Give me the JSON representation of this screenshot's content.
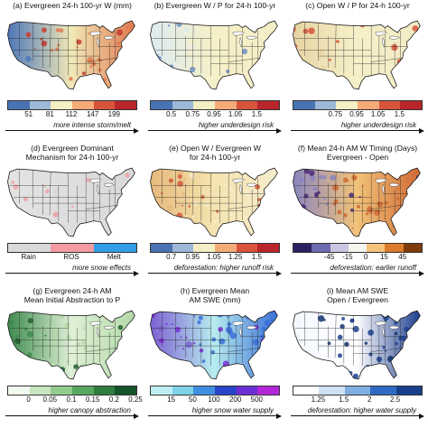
{
  "figure": {
    "panels": [
      {
        "title_lines": [
          "(a) Evergreen 24-h 100-yr W (mm)"
        ],
        "map_colors": {
          "west": "#4d77b8",
          "center": "#f2e8b7",
          "east": "#e07a4f",
          "accent": "#c63b2f"
        },
        "legend_type": "continuous",
        "legend_colors": [
          "#4a73b4",
          "#9cb9d7",
          "#f3eec4",
          "#f5ab78",
          "#d8533b",
          "#b8262b"
        ],
        "ticks": [
          "51",
          "81",
          "112",
          "147",
          "199"
        ],
        "arrow_text": "more intense storm/melt"
      },
      {
        "title_lines": [
          "(b) Evergreen W / P for 24-h 100-yr"
        ],
        "map_colors": {
          "west": "#dcebf0",
          "center": "#f6f0c9",
          "east": "#f4eec6",
          "accent": "#6d8fc4"
        },
        "legend_type": "continuous",
        "legend_colors": [
          "#4a73b4",
          "#9cb9d7",
          "#f3eec4",
          "#f5ab78",
          "#d8533b",
          "#b8262b"
        ],
        "ticks": [
          "0.5",
          "0.75",
          "0.95",
          "1.05",
          "1.5"
        ],
        "arrow_text": "higher underdesign risk"
      },
      {
        "title_lines": [
          "(c) Open W / P for 24-h 100-yr"
        ],
        "map_colors": {
          "west": "#e6d4a3",
          "center": "#f6f0c9",
          "east": "#f2ebc4",
          "accent": "#d8533b"
        },
        "legend_type": "continuous",
        "legend_colors": [
          "#4a73b4",
          "#9cb9d7",
          "#f3eec4",
          "#f5ab78",
          "#d8533b",
          "#b8262b"
        ],
        "ticks": [
          "0.75",
          "0.95",
          "1.05",
          "1.5"
        ],
        "arrow_text": "higher underdesign risk"
      },
      {
        "title_lines": [
          "(d) Evergreen Dominant",
          "Mechanism for 24-h 100-yr"
        ],
        "map_colors": {
          "west": "#e3e3e3",
          "center": "#dedede",
          "east": "#d9d9d9",
          "accent": "#f1a0a8"
        },
        "legend_type": "categorical",
        "legend_colors": [
          "#d9d9d9",
          "#f39aa2",
          "#2f9ee6"
        ],
        "ticks": [
          "Rain",
          "ROS",
          "Melt"
        ],
        "arrow_text": "more snow effects"
      },
      {
        "title_lines": [
          "(e) Open W / Evergreen W",
          "for 24-h 100-yr"
        ],
        "map_colors": {
          "west": "#e6b97c",
          "center": "#f4e4b0",
          "east": "#f6eccb",
          "accent": "#d2583c"
        },
        "legend_type": "continuous",
        "legend_colors": [
          "#4a73b4",
          "#9cb9d7",
          "#f3eec4",
          "#f5ab78",
          "#d8533b",
          "#b8262b"
        ],
        "ticks": [
          "0.7",
          "0.95",
          "1.05",
          "1.25",
          "1.5"
        ],
        "arrow_text": "deforestation: higher runoff risk"
      },
      {
        "title_lines": [
          "(f) Mean 24-h AM W Timing (Days)",
          "Evergreen - Open"
        ],
        "map_colors": {
          "west": "#8a86bf",
          "center": "#f2c37a",
          "east": "#d06a35",
          "accent": "#4b2a7b"
        },
        "legend_type": "continuous",
        "legend_colors": [
          "#2d1e63",
          "#6f6aad",
          "#c9c6e2",
          "#f7f5f0",
          "#f5c27c",
          "#dc7b2a",
          "#7f3b08"
        ],
        "ticks": [
          "-45",
          "-15",
          "0",
          "15",
          "45"
        ],
        "arrow_text": "deforestation: earlier runoff"
      },
      {
        "title_lines": [
          "(g) Evergreen 24-h AM",
          "Mean Initial Abstraction to P"
        ],
        "map_colors": {
          "west": "#3d8a4e",
          "center": "#dff0d6",
          "east": "#b4d9a9",
          "accent": "#1e5e2f"
        },
        "legend_type": "continuous",
        "legend_colors": [
          "#f2f9ee",
          "#c8e6bf",
          "#93cc8d",
          "#57a860",
          "#2e7d3f",
          "#15532a"
        ],
        "ticks": [
          "0",
          "0.05",
          "0.1",
          "0.15",
          "0.2",
          "0.25"
        ],
        "arrow_text": "higher canopy abstraction"
      },
      {
        "title_lines": [
          "(h) Evergreen Mean",
          "AM SWE (mm)"
        ],
        "map_colors": {
          "west": "#7d61d2",
          "center": "#b7ecef",
          "east": "#3a6fd8",
          "accent": "#7b2fd6"
        },
        "legend_type": "continuous",
        "legend_colors": [
          "#bfeef2",
          "#7fd3ea",
          "#3f8fe0",
          "#2b45c8",
          "#6a2ed4",
          "#b326d8"
        ],
        "ticks": [
          "15",
          "50",
          "100",
          "200",
          "500"
        ],
        "arrow_text": "higher snow water supply"
      },
      {
        "title_lines": [
          "(i) Mean AM SWE",
          "Open / Evergreen"
        ],
        "map_colors": {
          "west": "#f4f8ff",
          "center": "#ffffff",
          "east": "#1d3f8f",
          "accent": "#11306f"
        },
        "legend_type": "continuous",
        "legend_colors": [
          "#ffffff",
          "#cfe0f6",
          "#7faee3",
          "#2f6bc4",
          "#173f8c"
        ],
        "ticks": [
          "1.25",
          "1.5",
          "2",
          "2.5"
        ],
        "arrow_text": "deforestation: higher water supply"
      }
    ]
  }
}
